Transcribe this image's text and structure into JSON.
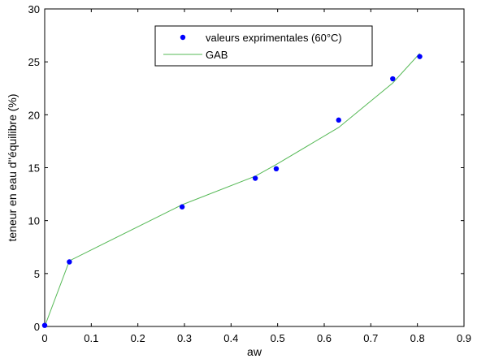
{
  "chart_data": {
    "type": "scatter",
    "xlabel": "aw",
    "ylabel": "teneur en eau d''équilibre (%)",
    "xlim": [
      0,
      0.9
    ],
    "ylim": [
      0,
      30
    ],
    "xticks": [
      "0",
      "0.1",
      "0.2",
      "0.3",
      "0.4",
      "0.5",
      "0.6",
      "0.7",
      "0.8",
      "0.9"
    ],
    "yticks": [
      "0",
      "5",
      "10",
      "15",
      "20",
      "25",
      "30"
    ],
    "grid": false,
    "legend_position": "top-center",
    "series": [
      {
        "name": "valeurs exprimentales (60°C)",
        "kind": "markers",
        "color": "#0000ff",
        "x": [
          0,
          0.053,
          0.295,
          0.452,
          0.497,
          0.631,
          0.747,
          0.805
        ],
        "y": [
          0.1,
          6.1,
          11.3,
          14.0,
          14.9,
          19.5,
          23.4,
          25.5
        ]
      },
      {
        "name": "GAB",
        "kind": "line",
        "color": "#56b956",
        "x": [
          0,
          0.053,
          0.295,
          0.452,
          0.497,
          0.631,
          0.747,
          0.805
        ],
        "y": [
          0,
          6.2,
          11.5,
          14.2,
          15.3,
          18.8,
          23.0,
          25.8
        ]
      }
    ]
  }
}
